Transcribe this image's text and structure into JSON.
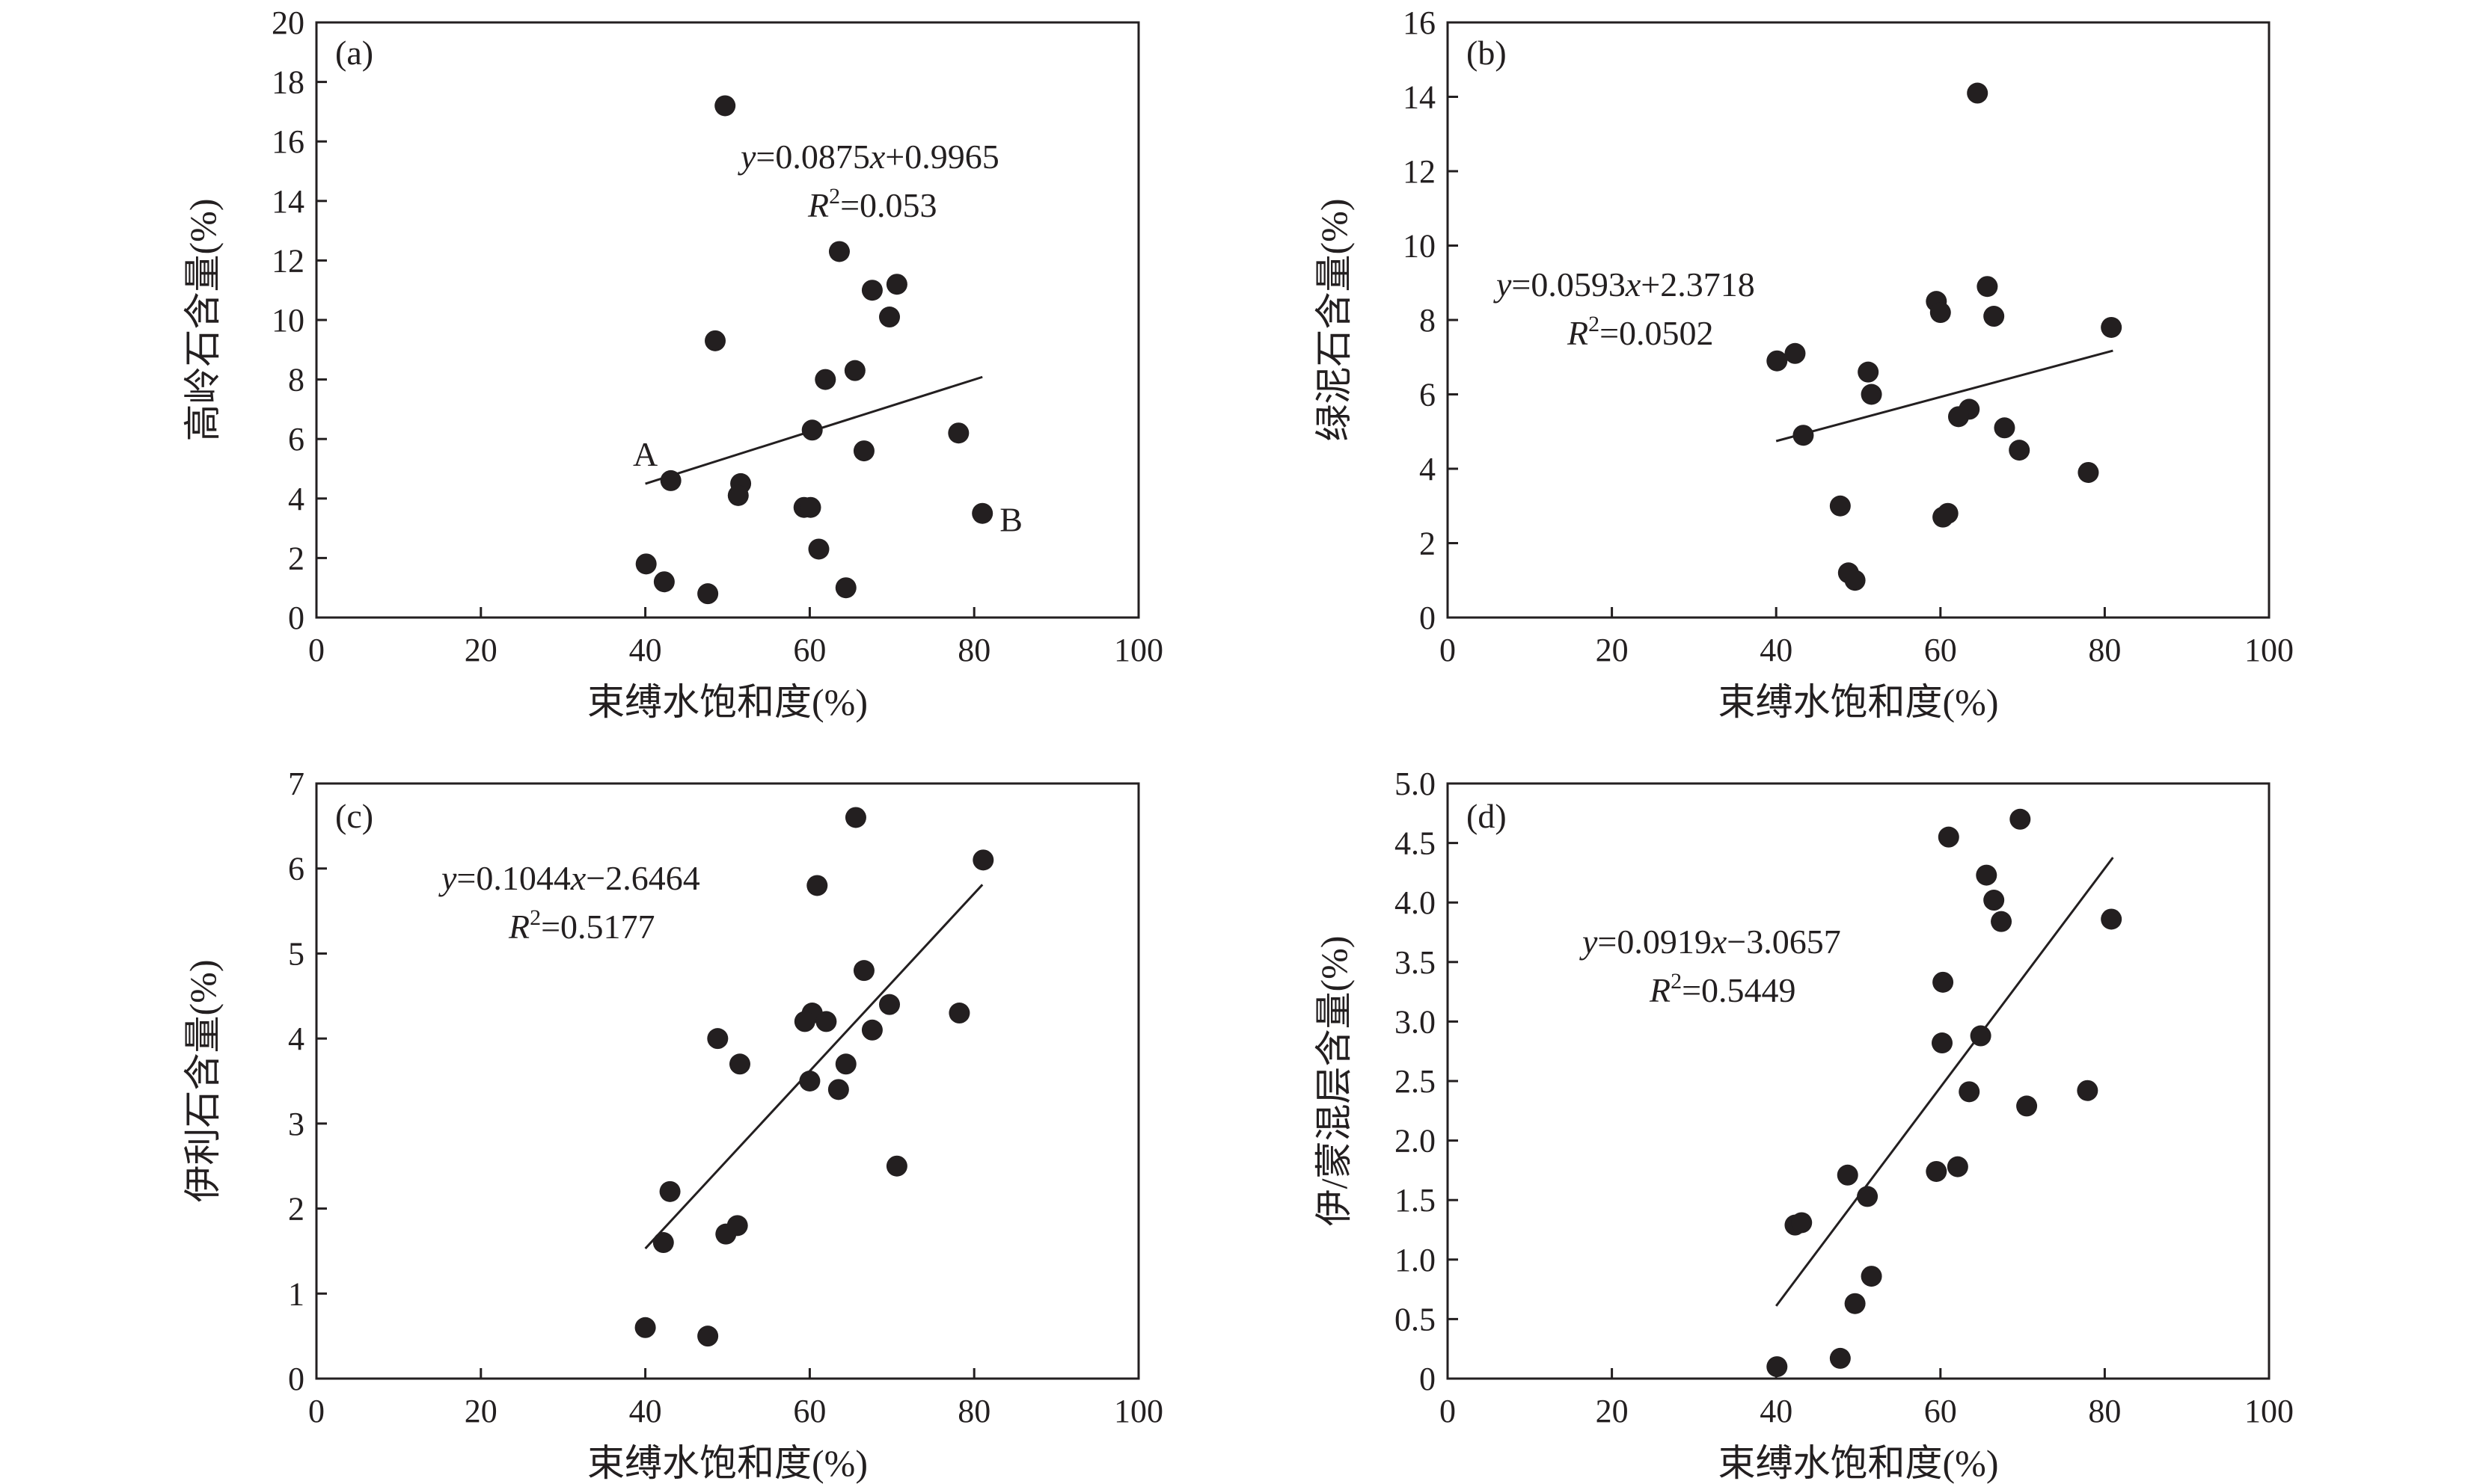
{
  "chart_data": [
    {
      "type": "scatter",
      "panel_label": "(a)",
      "xlabel": "束缚水饱和度(%)",
      "ylabel": "高岭石含量(%)",
      "xlim": [
        0,
        100
      ],
      "ylim": [
        0,
        20
      ],
      "xticks": [
        0,
        20,
        40,
        60,
        80,
        100
      ],
      "yticks": [
        0,
        2,
        4,
        6,
        8,
        10,
        12,
        14,
        16,
        18,
        20
      ],
      "x": [
        49.7,
        48.5,
        63.6,
        70.6,
        67.6,
        69.7,
        61.9,
        65.5,
        60.3,
        78.1,
        66.6,
        43.1,
        51.6,
        51.3,
        59.3,
        60.1,
        81.0,
        61.1,
        40.1,
        42.3,
        47.6,
        64.4
      ],
      "y": [
        17.2,
        9.3,
        12.3,
        11.2,
        11.0,
        10.1,
        8.0,
        8.3,
        6.3,
        6.2,
        5.6,
        4.6,
        4.5,
        4.1,
        3.7,
        3.7,
        3.5,
        2.3,
        1.8,
        1.2,
        0.8,
        1.0
      ],
      "fit": {
        "slope": 0.0875,
        "intercept": 0.9965,
        "x_range": [
          40,
          81
        ]
      },
      "equation": {
        "y": "y",
        "eq_mid": "=0.0875",
        "x": "x",
        "eq_tail": "+0.9965",
        "r": "R",
        "r_sup": "2",
        "r_tail": "=0.053"
      },
      "annotations": [
        {
          "text": "A",
          "x": 40,
          "y": 5.5
        },
        {
          "text": "B",
          "x": 84.5,
          "y": 3.3
        }
      ]
    },
    {
      "type": "scatter",
      "panel_label": "(b)",
      "xlabel": "束缚水饱和度(%)",
      "ylabel": "绿泥石含量(%)",
      "xlim": [
        0,
        100
      ],
      "ylim": [
        0,
        16
      ],
      "xticks": [
        0,
        20,
        40,
        60,
        80,
        100
      ],
      "yticks": [
        0,
        2,
        4,
        6,
        8,
        10,
        12,
        14,
        16
      ],
      "x": [
        64.5,
        65.7,
        59.5,
        60.0,
        66.5,
        80.8,
        40.1,
        42.3,
        51.2,
        51.6,
        43.3,
        63.5,
        62.2,
        67.8,
        69.6,
        78.0,
        47.8,
        60.9,
        60.3,
        48.8,
        49.6
      ],
      "y": [
        14.1,
        8.9,
        8.5,
        8.2,
        8.1,
        7.8,
        6.9,
        7.1,
        6.6,
        6.0,
        4.9,
        5.6,
        5.4,
        5.1,
        4.5,
        3.9,
        3.0,
        2.8,
        2.7,
        1.2,
        1.0
      ],
      "fit": {
        "slope": 0.0593,
        "intercept": 2.3718,
        "x_range": [
          40,
          81
        ]
      },
      "equation": {
        "y": "y",
        "eq_mid": "=0.0593",
        "x": "x",
        "eq_tail": "+2.3718",
        "r": "R",
        "r_sup": "2",
        "r_tail": "=0.0502"
      },
      "annotations": []
    },
    {
      "type": "scatter",
      "panel_label": "(c)",
      "xlabel": "束缚水饱和度(%)",
      "ylabel": "伊利石含量(%)",
      "xlim": [
        0,
        100
      ],
      "ylim": [
        0,
        7
      ],
      "xticks": [
        0,
        20,
        40,
        60,
        80,
        100
      ],
      "yticks": [
        0,
        1,
        2,
        3,
        4,
        5,
        6,
        7
      ],
      "x": [
        65.6,
        81.1,
        60.9,
        66.6,
        78.2,
        69.7,
        60.3,
        62.0,
        59.4,
        48.8,
        67.6,
        51.5,
        64.4,
        60.0,
        63.5,
        70.6,
        43.0,
        42.2,
        51.2,
        49.8,
        40.0,
        47.6
      ],
      "y": [
        6.6,
        6.1,
        5.8,
        4.8,
        4.3,
        4.4,
        4.3,
        4.2,
        4.2,
        4.0,
        4.1,
        3.7,
        3.7,
        3.5,
        3.4,
        2.5,
        2.2,
        1.6,
        1.8,
        1.7,
        0.6,
        0.5
      ],
      "fit": {
        "slope": 0.1044,
        "intercept": -2.6464,
        "x_range": [
          40,
          81
        ]
      },
      "equation": {
        "y": "y",
        "eq_mid": "=0.1044",
        "x": "x",
        "eq_tail": "−2.6464",
        "r": "R",
        "r_sup": "2",
        "r_tail": "=0.5177"
      },
      "annotations": []
    },
    {
      "type": "scatter",
      "panel_label": "(d)",
      "xlabel": "束缚水饱和度(%)",
      "ylabel": "伊/蒙混层含量(%)",
      "xlim": [
        0,
        100
      ],
      "ylim": [
        0,
        5.0
      ],
      "xticks": [
        0,
        20,
        40,
        60,
        80,
        100
      ],
      "yticks": [
        "0",
        "0.5",
        "1.0",
        "1.5",
        "2.0",
        "2.5",
        "3.0",
        "3.5",
        "4.0",
        "4.5",
        "5.0"
      ],
      "x": [
        69.7,
        61.0,
        65.6,
        66.5,
        67.4,
        80.8,
        60.3,
        60.2,
        64.9,
        63.5,
        77.9,
        70.5,
        48.7,
        51.1,
        59.5,
        62.1,
        42.3,
        43.1,
        51.6,
        49.6,
        47.8,
        40.1
      ],
      "y": [
        4.7,
        4.55,
        4.23,
        4.02,
        3.84,
        3.86,
        3.33,
        2.82,
        2.88,
        2.41,
        2.42,
        2.29,
        1.71,
        1.53,
        1.74,
        1.78,
        1.29,
        1.31,
        0.86,
        0.63,
        0.17,
        0.1
      ],
      "fit": {
        "slope": 0.0919,
        "intercept": -3.0657,
        "x_range": [
          40,
          81
        ]
      },
      "equation": {
        "y": "y",
        "eq_mid": "=0.0919",
        "x": "x",
        "eq_tail": "−3.0657",
        "r": "R",
        "r_sup": "2",
        "r_tail": "=0.5449"
      },
      "annotations": []
    }
  ]
}
